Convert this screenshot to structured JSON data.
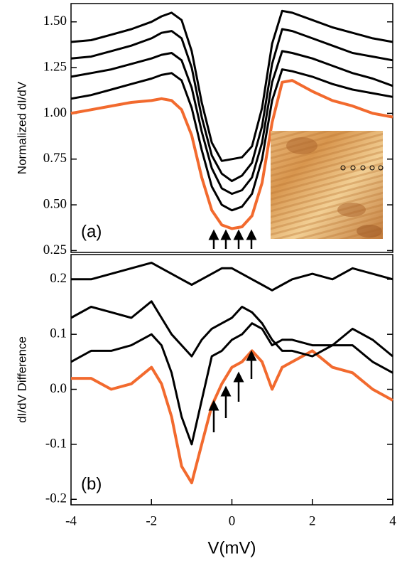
{
  "chart_data": [
    {
      "type": "line",
      "ylabel": "Normalized dI/dV",
      "annotation": "(a)",
      "x": [
        -4,
        -3.5,
        -3,
        -2.5,
        -2,
        -1.75,
        -1.5,
        -1.25,
        -1,
        -0.75,
        -0.5,
        -0.25,
        0,
        0.25,
        0.5,
        0.75,
        1,
        1.25,
        1.5,
        2,
        2.5,
        3,
        3.5,
        4
      ],
      "xlim": [
        -4,
        4
      ],
      "ylim": [
        0.24,
        1.6
      ],
      "yticks": [
        {
          "value": 0.25,
          "label": "0.25"
        },
        {
          "value": 0.5,
          "label": "0.50"
        },
        {
          "value": 0.75,
          "label": "0.75"
        },
        {
          "value": 1.0,
          "label": "1.00"
        },
        {
          "value": 1.25,
          "label": "1.25"
        },
        {
          "value": 1.5,
          "label": "1.50"
        }
      ],
      "series": [
        {
          "color": "#f26a2e",
          "values": [
            1.0,
            1.02,
            1.04,
            1.06,
            1.07,
            1.08,
            1.07,
            1.02,
            0.88,
            0.65,
            0.47,
            0.39,
            0.37,
            0.38,
            0.44,
            0.62,
            0.95,
            1.17,
            1.18,
            1.12,
            1.07,
            1.04,
            1.0,
            0.98
          ]
        },
        {
          "color": "#000000",
          "values": [
            1.08,
            1.1,
            1.13,
            1.16,
            1.19,
            1.21,
            1.22,
            1.18,
            1.03,
            0.8,
            0.6,
            0.5,
            0.47,
            0.49,
            0.56,
            0.75,
            1.07,
            1.24,
            1.23,
            1.2,
            1.16,
            1.13,
            1.11,
            1.09
          ]
        },
        {
          "color": "#000000",
          "values": [
            1.2,
            1.22,
            1.24,
            1.27,
            1.3,
            1.32,
            1.33,
            1.29,
            1.14,
            0.9,
            0.7,
            0.59,
            0.56,
            0.58,
            0.65,
            0.84,
            1.17,
            1.34,
            1.33,
            1.3,
            1.26,
            1.22,
            1.19,
            1.15
          ]
        },
        {
          "color": "#000000",
          "values": [
            1.3,
            1.31,
            1.34,
            1.37,
            1.41,
            1.44,
            1.45,
            1.41,
            1.25,
            0.98,
            0.77,
            0.67,
            0.63,
            0.66,
            0.73,
            0.93,
            1.27,
            1.46,
            1.45,
            1.41,
            1.37,
            1.33,
            1.31,
            1.29
          ]
        },
        {
          "color": "#000000",
          "values": [
            1.39,
            1.4,
            1.43,
            1.46,
            1.5,
            1.53,
            1.55,
            1.51,
            1.34,
            1.06,
            0.84,
            0.74,
            0.75,
            0.76,
            0.82,
            1.03,
            1.38,
            1.56,
            1.55,
            1.51,
            1.47,
            1.44,
            1.41,
            1.39
          ]
        }
      ]
    },
    {
      "type": "line",
      "ylabel": "dI/dV Difference",
      "xlabel": "V(mV)",
      "annotation": "(b)",
      "x": [
        -4,
        -3.5,
        -3,
        -2.5,
        -2,
        -1.75,
        -1.5,
        -1.25,
        -1,
        -0.75,
        -0.5,
        -0.25,
        0,
        0.25,
        0.5,
        0.75,
        1,
        1.25,
        1.5,
        2,
        2.5,
        3,
        3.5,
        4
      ],
      "xlim": [
        -4,
        4
      ],
      "ylim": [
        -0.21,
        0.245
      ],
      "xticks": [
        -4,
        -2,
        0,
        2,
        4
      ],
      "yticks": [
        {
          "value": -0.2,
          "label": "-0.2"
        },
        {
          "value": -0.1,
          "label": "-0.1"
        },
        {
          "value": 0,
          "label": "0.0"
        },
        0.1,
        0.2
      ],
      "series": [
        {
          "color": "#f26a2e",
          "values": [
            0.02,
            0.02,
            0.0,
            0.01,
            0.04,
            0.01,
            -0.05,
            -0.14,
            -0.17,
            -0.1,
            -0.03,
            0.01,
            0.04,
            0.05,
            0.07,
            0.05,
            0.0,
            0.04,
            0.05,
            0.07,
            0.04,
            0.03,
            0.0,
            -0.02
          ]
        },
        {
          "color": "#000000",
          "values": [
            0.05,
            0.07,
            0.07,
            0.08,
            0.1,
            0.08,
            0.03,
            -0.05,
            -0.1,
            -0.02,
            0.06,
            0.07,
            0.09,
            0.1,
            0.12,
            0.11,
            0.08,
            0.09,
            0.09,
            0.08,
            0.08,
            0.08,
            0.05,
            0.03
          ]
        },
        {
          "color": "#000000",
          "values": [
            0.13,
            0.15,
            0.14,
            0.13,
            0.16,
            0.13,
            0.1,
            0.08,
            0.06,
            0.09,
            0.11,
            0.12,
            0.13,
            0.15,
            0.14,
            0.12,
            0.09,
            0.07,
            0.07,
            0.06,
            0.08,
            0.11,
            0.09,
            0.06
          ]
        },
        {
          "color": "#000000",
          "values": [
            0.2,
            0.2,
            0.21,
            0.22,
            0.23,
            0.22,
            0.21,
            0.2,
            0.19,
            0.2,
            0.21,
            0.22,
            0.22,
            0.21,
            0.2,
            0.19,
            0.18,
            0.19,
            0.2,
            0.21,
            0.2,
            0.22,
            0.21,
            0.2
          ]
        }
      ]
    }
  ]
}
